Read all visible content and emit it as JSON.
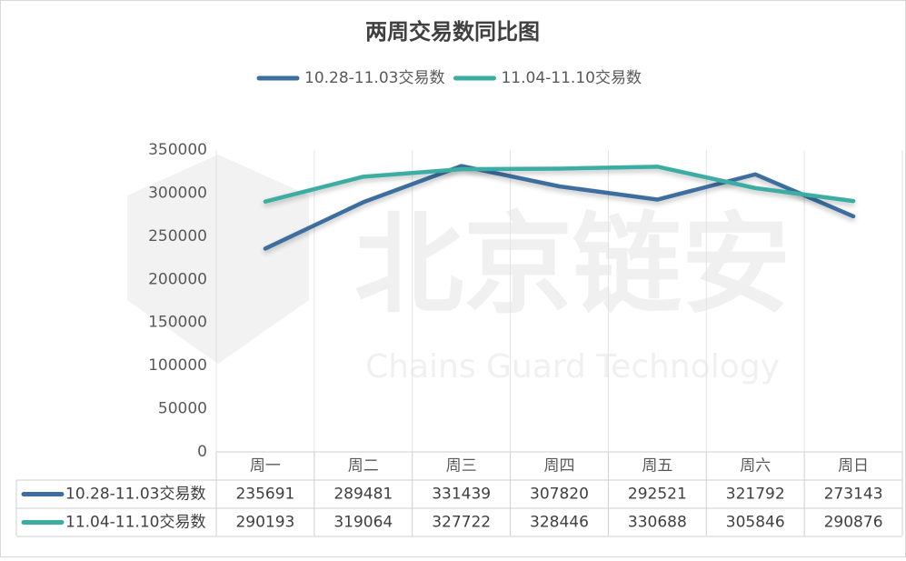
{
  "chart_data": {
    "type": "line",
    "title": "两周交易数同比图",
    "watermark": "北京链安",
    "watermark_subtitle": "Chains Guard Technology",
    "categories": [
      "周一",
      "周二",
      "周三",
      "周四",
      "周五",
      "周六",
      "周日"
    ],
    "series": [
      {
        "name": "10.28-11.03交易数",
        "color": "#3d6e9e",
        "values": [
          235691,
          289481,
          331439,
          307820,
          292521,
          321792,
          273143
        ]
      },
      {
        "name": "11.04-11.10交易数",
        "color": "#3aada3",
        "values": [
          290193,
          319064,
          327722,
          328446,
          330688,
          305846,
          290876
        ]
      }
    ],
    "ylim": [
      0,
      350000
    ],
    "yticks": [
      0,
      50000,
      100000,
      150000,
      200000,
      250000,
      300000,
      350000
    ],
    "legend": "top",
    "data_table": true
  }
}
